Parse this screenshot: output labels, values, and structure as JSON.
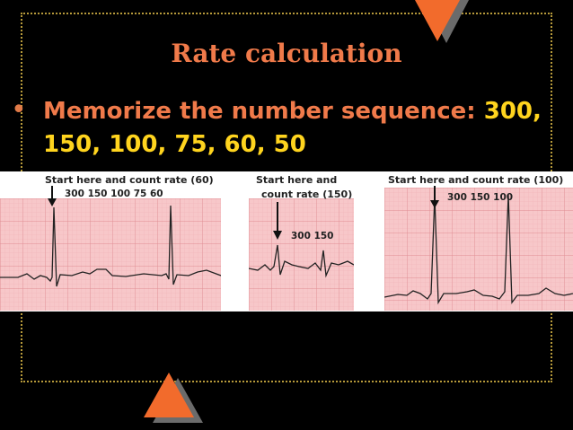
{
  "slide": {
    "title": "Rate calculation",
    "bullet": {
      "prefix": "Memorize the number sequence: ",
      "sequence_line1": "300,",
      "sequence_line2": "150, 100, 75, 60, 50"
    }
  },
  "ecg": {
    "strip1": {
      "label": "Start here and count rate (60)",
      "sequence": "300 150  100 75  60"
    },
    "strip2": {
      "label_line1": "Start here and",
      "label_line2": "count rate (150)",
      "sequence": "300 150"
    },
    "strip3": {
      "label": "Start here and count rate (100)",
      "sequence": "300 150  100"
    }
  },
  "colors": {
    "background": "#000000",
    "title": "#f07a4a",
    "sequence_highlight": "#ffd41e",
    "frame": "#b79a3a",
    "ecg_paper": "#f7c7c9",
    "ecg_grid": "#e59aa0",
    "ecg_trace": "#222222"
  }
}
